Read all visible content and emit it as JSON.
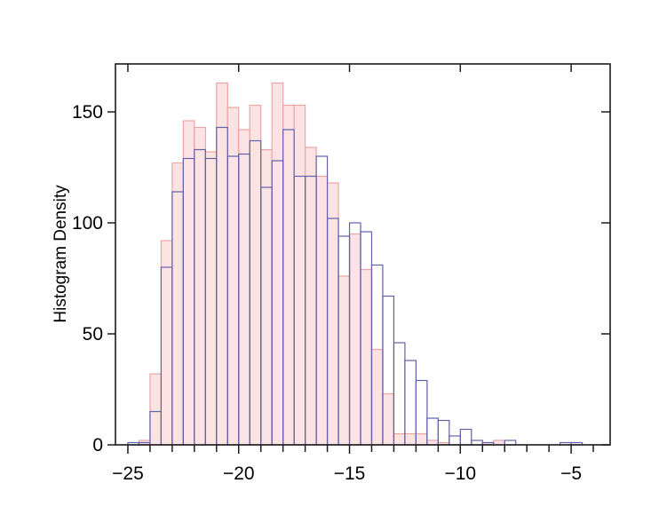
{
  "figure": {
    "background": "#ffffff",
    "kind": "overlaid histograms"
  },
  "chart_data": {
    "type": "bar",
    "subtype": "histogram-overlay",
    "title": "",
    "xlabel": "",
    "ylabel": "Histogram Density",
    "grid": false,
    "legend": null,
    "xlim": [
      -25.56,
      -3.24
    ],
    "ylim": [
      0,
      171.6
    ],
    "bin_width": 0.5,
    "bin_edges": [
      -25.0,
      -24.5,
      -24.0,
      -23.5,
      -23.0,
      -22.5,
      -22.0,
      -21.5,
      -21.0,
      -20.5,
      -20.0,
      -19.5,
      -19.0,
      -18.5,
      -18.0,
      -17.5,
      -17.0,
      -16.5,
      -16.0,
      -15.5,
      -15.0,
      -14.5,
      -14.0,
      -13.5,
      -13.0,
      -12.5,
      -12.0,
      -11.5,
      -11.0,
      -10.5,
      -10.0,
      -9.5,
      -9.0,
      -8.5,
      -8.0,
      -7.5,
      -7.0,
      -6.5,
      -6.0,
      -5.5,
      -5.0,
      -4.5,
      -4.0
    ],
    "series": [
      {
        "name": "filled pink histogram",
        "style": "filled",
        "fill": "#fbe3e3",
        "edge": "#eda4a4",
        "values": [
          0,
          2,
          32,
          92,
          127,
          146,
          143,
          132,
          163,
          152,
          142,
          153,
          133,
          163,
          153,
          153,
          134,
          121,
          118,
          76,
          95,
          79,
          43,
          23,
          5,
          5,
          5,
          2,
          1,
          0,
          0,
          0,
          1,
          2,
          0,
          0,
          0,
          0,
          0,
          0,
          0,
          0
        ]
      },
      {
        "name": "outline blue histogram",
        "style": "outline",
        "fill": "none",
        "edge": "#6161ac",
        "values": [
          1,
          1,
          15,
          80,
          114,
          129,
          133,
          129,
          143,
          130,
          131,
          137,
          116,
          128,
          142,
          121,
          121,
          130,
          102,
          94,
          100,
          96,
          81,
          67,
          46,
          38,
          29,
          12,
          11,
          4,
          7,
          2,
          1,
          0,
          2,
          0,
          0,
          0,
          0,
          1,
          1,
          0
        ]
      }
    ],
    "x_ticks_major": {
      "values": [
        -25,
        -20,
        -15,
        -10,
        -5
      ],
      "labels": [
        "−25",
        "−20",
        "−15",
        "−10",
        "−5"
      ]
    },
    "x_ticks_minor": [
      -24,
      -23,
      -22,
      -21,
      -19,
      -18,
      -17,
      -16,
      -14,
      -13,
      -12,
      -11,
      -9,
      -8,
      -7,
      -6,
      -4
    ],
    "y_ticks": {
      "values": [
        0,
        50,
        100,
        150
      ],
      "labels": [
        "0",
        "50",
        "100",
        "150"
      ]
    },
    "axis_color": "#1c1c1c"
  }
}
